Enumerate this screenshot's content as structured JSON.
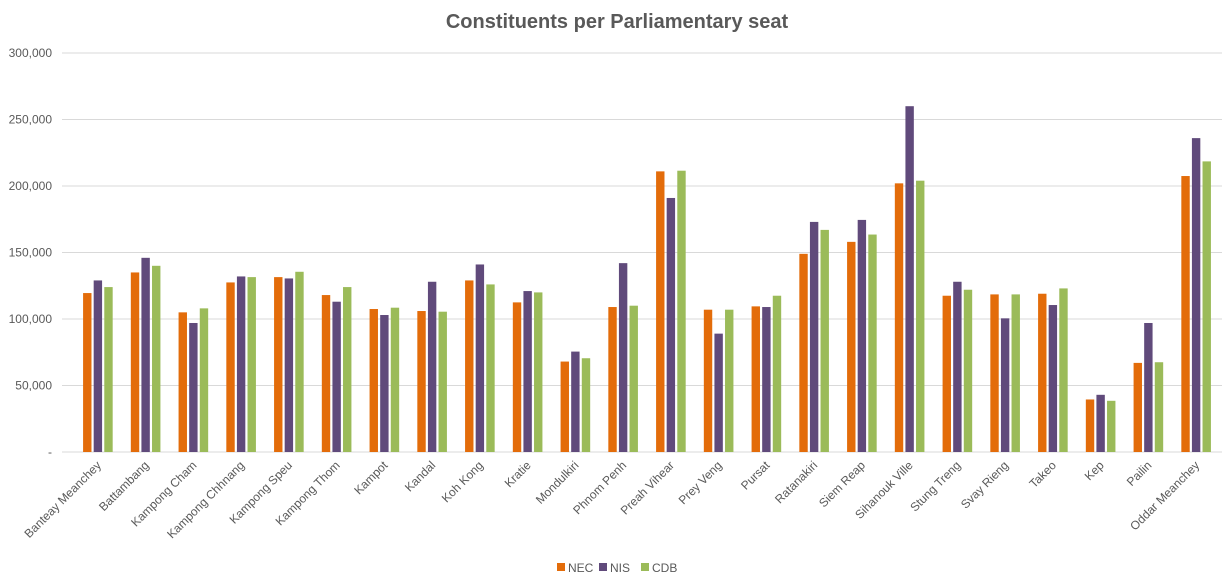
{
  "chart_data": {
    "type": "bar",
    "title": "Constituents per Parliamentary seat",
    "xlabel": "",
    "ylabel": "",
    "ylim": [
      0,
      300000
    ],
    "y_ticks": [
      {
        "value": 0,
        "label": "-"
      },
      {
        "value": 50000,
        "label": "50,000"
      },
      {
        "value": 100000,
        "label": "100,000"
      },
      {
        "value": 150000,
        "label": "150,000"
      },
      {
        "value": 200000,
        "label": "200,000"
      },
      {
        "value": 250000,
        "label": "250,000"
      },
      {
        "value": 300000,
        "label": "300,000"
      }
    ],
    "grid": true,
    "legend_position": "bottom",
    "categories": [
      "Banteay Meanchey",
      "Battambang",
      "Kampong Cham",
      "Kampong Chhnang",
      "Kampong Speu",
      "Kampong Thom",
      "Kampot",
      "Kandal",
      "Koh Kong",
      "Kratie",
      "Mondulkiri",
      "Phnom Penh",
      "Preah Vihear",
      "Prey Veng",
      "Pursat",
      "Ratanakiri",
      "Siem Reap",
      "Sihanouk Ville",
      "Stung Treng",
      "Svay Rieng",
      "Takeo",
      "Kep",
      "Pailin",
      "Oddar Meanchey"
    ],
    "series": [
      {
        "name": "NEC",
        "color": "#e36c0a",
        "values": [
          119500,
          135000,
          105000,
          127500,
          131500,
          118000,
          107500,
          106000,
          129000,
          112500,
          68000,
          109000,
          211000,
          107000,
          109500,
          149000,
          158000,
          202000,
          117500,
          118500,
          119000,
          39500,
          67000,
          207500
        ]
      },
      {
        "name": "NIS",
        "color": "#604a7b",
        "values": [
          129000,
          146000,
          97000,
          132000,
          130500,
          113000,
          103000,
          128000,
          141000,
          121000,
          75500,
          142000,
          191000,
          89000,
          109000,
          173000,
          174500,
          260000,
          128000,
          100500,
          110500,
          43000,
          97000,
          236000
        ]
      },
      {
        "name": "CDB",
        "color": "#9bbb59",
        "values": [
          124000,
          140000,
          108000,
          131500,
          135500,
          124000,
          108500,
          105500,
          126000,
          120000,
          70500,
          110000,
          211500,
          107000,
          117500,
          167000,
          163500,
          204000,
          122000,
          118500,
          123000,
          38500,
          67500,
          218500
        ]
      }
    ]
  }
}
